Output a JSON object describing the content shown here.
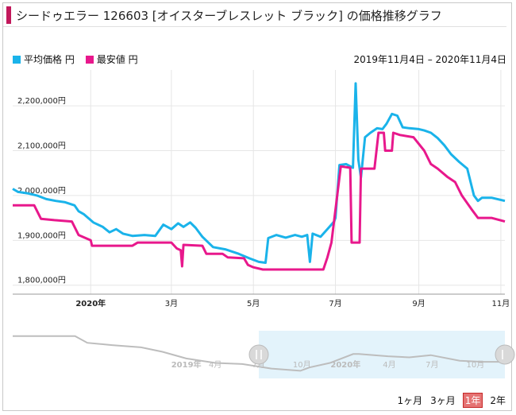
{
  "title": "シードゥエラー 126603 [オイスターブレスレット ブラック] の価格推移グラフ",
  "date_range": "2019年11月4日 – 2020年11月4日",
  "range_buttons": [
    {
      "label": "1ヶ月",
      "active": false
    },
    {
      "label": "3ヶ月",
      "active": false
    },
    {
      "label": "1年",
      "active": true
    },
    {
      "label": "2年",
      "active": false
    }
  ],
  "colors": {
    "avg": "#1ab3ea",
    "min": "#e8188c",
    "nav_line": "#9e9e9e",
    "nav_bg": "#e3f3fb"
  },
  "chart_data": {
    "type": "line",
    "x_start": "2019-11-04",
    "x_end": "2020-11-04",
    "ylim": [
      1780000,
      2280000
    ],
    "y_ticks": [
      1800000,
      1900000,
      2000000,
      2100000,
      2200000
    ],
    "y_tick_labels": [
      "1,800,000円",
      "1,900,000円",
      "2,000,000円",
      "2,100,000円",
      "2,200,000円"
    ],
    "x_ticks": [
      {
        "date": "2020-01-01",
        "label": "2020年",
        "bold": true
      },
      {
        "date": "2020-03-01",
        "label": "3月",
        "bold": false
      },
      {
        "date": "2020-05-01",
        "label": "5月",
        "bold": false
      },
      {
        "date": "2020-07-01",
        "label": "7月",
        "bold": false
      },
      {
        "date": "2020-09-01",
        "label": "9月",
        "bold": false
      },
      {
        "date": "2020-11-01",
        "label": "11月",
        "bold": false
      }
    ],
    "series": [
      {
        "name": "平均価格 円",
        "color": "#1ab3ea",
        "points": [
          [
            "2019-11-04",
            2015000
          ],
          [
            "2019-11-08",
            2008000
          ],
          [
            "2019-11-15",
            2005000
          ],
          [
            "2019-11-22",
            2000000
          ],
          [
            "2019-11-29",
            1992000
          ],
          [
            "2019-12-06",
            1988000
          ],
          [
            "2019-12-13",
            1985000
          ],
          [
            "2019-12-20",
            1978000
          ],
          [
            "2019-12-23",
            1965000
          ],
          [
            "2019-12-27",
            1958000
          ],
          [
            "2020-01-03",
            1940000
          ],
          [
            "2020-01-10",
            1930000
          ],
          [
            "2020-01-15",
            1918000
          ],
          [
            "2020-01-20",
            1925000
          ],
          [
            "2020-01-25",
            1915000
          ],
          [
            "2020-02-01",
            1910000
          ],
          [
            "2020-02-10",
            1912000
          ],
          [
            "2020-02-18",
            1910000
          ],
          [
            "2020-02-24",
            1935000
          ],
          [
            "2020-03-01",
            1925000
          ],
          [
            "2020-03-06",
            1938000
          ],
          [
            "2020-03-10",
            1930000
          ],
          [
            "2020-03-15",
            1940000
          ],
          [
            "2020-03-19",
            1928000
          ],
          [
            "2020-03-24",
            1908000
          ],
          [
            "2020-04-01",
            1885000
          ],
          [
            "2020-04-10",
            1880000
          ],
          [
            "2020-04-20",
            1870000
          ],
          [
            "2020-04-28",
            1860000
          ],
          [
            "2020-05-05",
            1852000
          ],
          [
            "2020-05-10",
            1850000
          ],
          [
            "2020-05-12",
            1905000
          ],
          [
            "2020-05-18",
            1912000
          ],
          [
            "2020-05-25",
            1906000
          ],
          [
            "2020-06-01",
            1912000
          ],
          [
            "2020-06-06",
            1908000
          ],
          [
            "2020-06-10",
            1912000
          ],
          [
            "2020-06-12",
            1852000
          ],
          [
            "2020-06-14",
            1915000
          ],
          [
            "2020-06-20",
            1908000
          ],
          [
            "2020-06-25",
            1925000
          ],
          [
            "2020-06-30",
            1942000
          ],
          [
            "2020-07-01",
            1950000
          ],
          [
            "2020-07-04",
            2068000
          ],
          [
            "2020-07-09",
            2070000
          ],
          [
            "2020-07-14",
            2062000
          ],
          [
            "2020-07-16",
            2250000
          ],
          [
            "2020-07-18",
            2080000
          ],
          [
            "2020-07-20",
            2040000
          ],
          [
            "2020-07-23",
            2130000
          ],
          [
            "2020-07-27",
            2140000
          ],
          [
            "2020-08-01",
            2150000
          ],
          [
            "2020-08-05",
            2148000
          ],
          [
            "2020-08-08",
            2160000
          ],
          [
            "2020-08-12",
            2182000
          ],
          [
            "2020-08-16",
            2178000
          ],
          [
            "2020-08-20",
            2152000
          ],
          [
            "2020-08-25",
            2150000
          ],
          [
            "2020-09-01",
            2148000
          ],
          [
            "2020-09-05",
            2145000
          ],
          [
            "2020-09-10",
            2140000
          ],
          [
            "2020-09-15",
            2128000
          ],
          [
            "2020-09-20",
            2112000
          ],
          [
            "2020-09-25",
            2092000
          ],
          [
            "2020-10-01",
            2075000
          ],
          [
            "2020-10-07",
            2060000
          ],
          [
            "2020-10-12",
            2000000
          ],
          [
            "2020-10-15",
            1988000
          ],
          [
            "2020-10-18",
            1995000
          ],
          [
            "2020-10-25",
            1995000
          ],
          [
            "2020-11-04",
            1988000
          ]
        ]
      },
      {
        "name": "最安値 円",
        "color": "#e8188c",
        "points": [
          [
            "2019-11-04",
            1978000
          ],
          [
            "2019-11-20",
            1978000
          ],
          [
            "2019-11-25",
            1948000
          ],
          [
            "2019-12-05",
            1945000
          ],
          [
            "2019-12-18",
            1942000
          ],
          [
            "2019-12-23",
            1912000
          ],
          [
            "2020-01-01",
            1900000
          ],
          [
            "2020-01-02",
            1888000
          ],
          [
            "2020-02-01",
            1888000
          ],
          [
            "2020-02-05",
            1895000
          ],
          [
            "2020-03-01",
            1895000
          ],
          [
            "2020-03-05",
            1882000
          ],
          [
            "2020-03-08",
            1878000
          ],
          [
            "2020-03-09",
            1842000
          ],
          [
            "2020-03-10",
            1890000
          ],
          [
            "2020-03-24",
            1888000
          ],
          [
            "2020-03-27",
            1870000
          ],
          [
            "2020-04-08",
            1870000
          ],
          [
            "2020-04-12",
            1862000
          ],
          [
            "2020-04-24",
            1860000
          ],
          [
            "2020-04-27",
            1845000
          ],
          [
            "2020-05-01",
            1840000
          ],
          [
            "2020-05-08",
            1835000
          ],
          [
            "2020-06-22",
            1835000
          ],
          [
            "2020-06-25",
            1862000
          ],
          [
            "2020-06-28",
            1895000
          ],
          [
            "2020-07-05",
            2065000
          ],
          [
            "2020-07-12",
            2062000
          ],
          [
            "2020-07-13",
            1895000
          ],
          [
            "2020-07-19",
            1895000
          ],
          [
            "2020-07-20",
            2060000
          ],
          [
            "2020-07-30",
            2060000
          ],
          [
            "2020-08-02",
            2140000
          ],
          [
            "2020-08-06",
            2140000
          ],
          [
            "2020-08-07",
            2100000
          ],
          [
            "2020-08-12",
            2100000
          ],
          [
            "2020-08-13",
            2140000
          ],
          [
            "2020-08-18",
            2135000
          ],
          [
            "2020-08-28",
            2130000
          ],
          [
            "2020-09-05",
            2100000
          ],
          [
            "2020-09-10",
            2070000
          ],
          [
            "2020-09-15",
            2060000
          ],
          [
            "2020-09-22",
            2042000
          ],
          [
            "2020-09-28",
            2030000
          ],
          [
            "2020-10-03",
            2000000
          ],
          [
            "2020-10-10",
            1970000
          ],
          [
            "2020-10-15",
            1950000
          ],
          [
            "2020-10-25",
            1950000
          ],
          [
            "2020-11-04",
            1942000
          ]
        ]
      }
    ]
  },
  "navigator": {
    "x_ticks": [
      {
        "date": "2019-11-04",
        "label": "2019年",
        "bold": true
      },
      {
        "date": "2020-01-04",
        "label": "4月",
        "bold": false
      },
      {
        "date": "2020-04-04",
        "label": "7月",
        "bold": false
      },
      {
        "date": "2020-07-04",
        "label": "10月",
        "bold": false
      },
      {
        "date": "2020-10-04",
        "label": "2020年",
        "bold": true
      },
      {
        "date": "2021-01-04",
        "label": "4月",
        "bold": false
      },
      {
        "date": "2021-04-04",
        "label": "7月",
        "bold": false
      },
      {
        "date": "2021-07-04",
        "label": "10月",
        "bold": false
      }
    ],
    "series": [
      [
        "2018-11-04",
        2300000
      ],
      [
        "2019-03-15",
        2300000
      ],
      [
        "2019-04-10",
        2240000
      ],
      [
        "2019-06-01",
        2220000
      ],
      [
        "2019-08-01",
        2200000
      ],
      [
        "2019-09-15",
        2160000
      ],
      [
        "2019-11-04",
        2100000
      ],
      [
        "2020-01-04",
        2060000
      ],
      [
        "2020-03-01",
        2050000
      ],
      [
        "2020-05-01",
        2010000
      ],
      [
        "2020-07-01",
        1990000
      ],
      [
        "2020-07-20",
        2020000
      ],
      [
        "2020-09-01",
        2060000
      ],
      [
        "2020-10-20",
        2140000
      ],
      [
        "2020-11-01",
        2140000
      ],
      [
        "2021-01-01",
        2120000
      ],
      [
        "2021-02-15",
        2110000
      ],
      [
        "2021-04-01",
        2130000
      ],
      [
        "2021-06-01",
        2080000
      ],
      [
        "2021-07-20",
        2070000
      ],
      [
        "2021-09-04",
        2070000
      ]
    ]
  }
}
